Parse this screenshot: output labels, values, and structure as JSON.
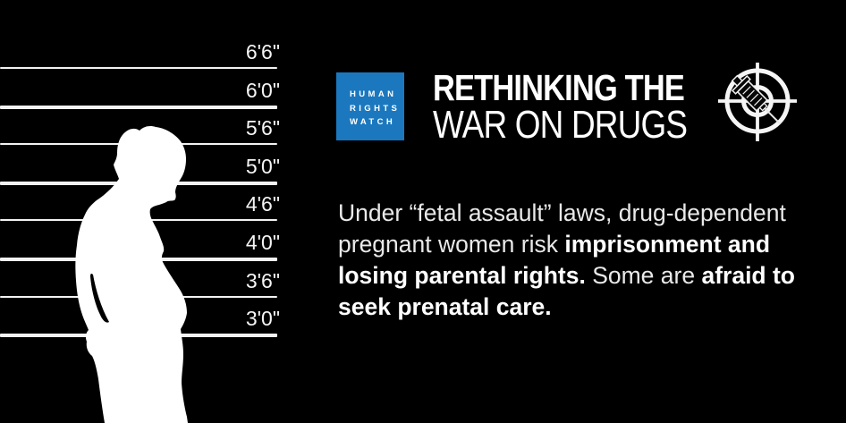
{
  "background_color": "#000000",
  "brand": {
    "logo_lines": [
      "HUMAN",
      "RIGHTS",
      "WATCH"
    ],
    "logo_color": "#1b78be",
    "logo_text_color": "#ffffff",
    "title_line1": "RETHINKING THE",
    "title_line2": "WAR ON DRUGS",
    "title_color": "#ffffff"
  },
  "height_chart": {
    "marks": [
      {
        "label": "6'6\"",
        "thick": false
      },
      {
        "label": "6'0\"",
        "thick": true
      },
      {
        "label": "5'6\"",
        "thick": false
      },
      {
        "label": "5'0\"",
        "thick": true
      },
      {
        "label": "4'6\"",
        "thick": false
      },
      {
        "label": "4'0\"",
        "thick": true
      },
      {
        "label": "3'6\"",
        "thick": false
      },
      {
        "label": "3'0\"",
        "thick": true
      }
    ],
    "line_color": "#f2f2f2",
    "label_color": "#f5f5f5"
  },
  "silhouette": {
    "subject": "pregnant-woman-profile",
    "color": "#ffffff"
  },
  "icons": {
    "target": "crosshair-syringe-icon"
  },
  "body_text": {
    "regular_color": "#e9e9e9",
    "bold_color": "#ffffff",
    "lines": [
      [
        {
          "t": "Under “fetal assault” laws, drug-dependent",
          "b": false
        }
      ],
      [
        {
          "t": "pregnant women risk ",
          "b": false
        },
        {
          "t": "imprisonment and",
          "b": true
        }
      ],
      [
        {
          "t": "losing parental rights.",
          "b": true
        },
        {
          "t": " Some are ",
          "b": false
        },
        {
          "t": "afraid to",
          "b": true
        }
      ],
      [
        {
          "t": "seek prenatal care.",
          "b": true
        }
      ]
    ]
  }
}
